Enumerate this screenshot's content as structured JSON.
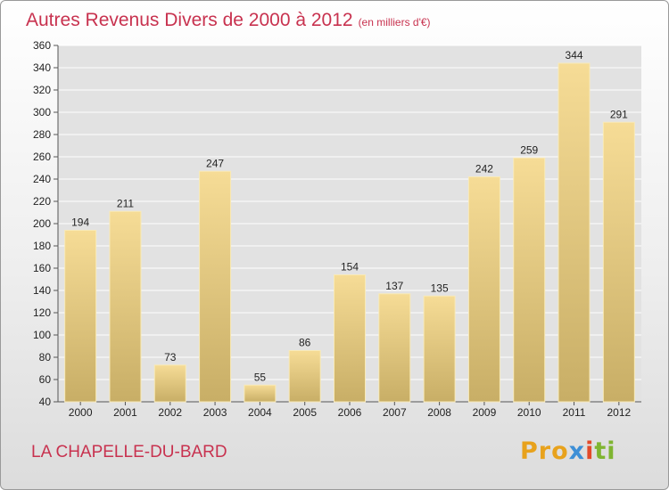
{
  "title": "Autres Revenus Divers de 2000 à 2012",
  "unit_note": "(en milliers d'€)",
  "commune": "LA CHAPELLE-DU-BARD",
  "logo": {
    "p1": "Pro",
    "p2": "x",
    "p3": "i",
    "p4": "ti"
  },
  "colors": {
    "title": "#c8324f",
    "bar_light": "#f6dc96",
    "bar_dark": "#c8ae66",
    "grid": "#ffffff",
    "plot_bg": "#e2e2e2"
  },
  "chart_data": {
    "type": "bar",
    "title": "Autres Revenus Divers de 2000 à 2012",
    "xlabel": "",
    "ylabel": "",
    "ylim": [
      40,
      360
    ],
    "ytick_step": 20,
    "grid": true,
    "categories": [
      "2000",
      "2001",
      "2002",
      "2003",
      "2004",
      "2005",
      "2006",
      "2007",
      "2008",
      "2009",
      "2010",
      "2011",
      "2012"
    ],
    "values": [
      194,
      211,
      73,
      247,
      55,
      86,
      154,
      137,
      135,
      242,
      259,
      344,
      291
    ]
  }
}
